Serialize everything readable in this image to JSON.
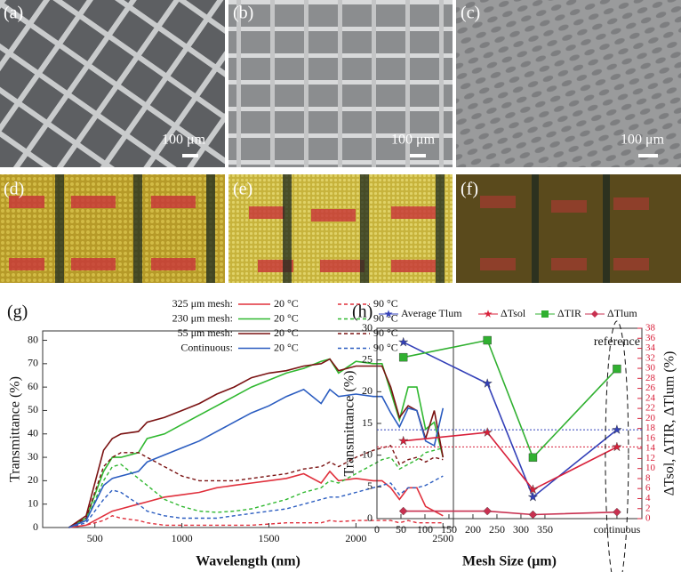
{
  "panels": [
    {
      "label": "(a)",
      "scale": "100 μm"
    },
    {
      "label": "(b)",
      "scale": "100 μm"
    },
    {
      "label": "(c)",
      "scale": "100 μm"
    },
    {
      "label": "(d)"
    },
    {
      "label": "(e)"
    },
    {
      "label": "(f)"
    }
  ],
  "chart_data": [
    {
      "type": "line",
      "panel": "(g)",
      "x_label": "Wavelength (nm)",
      "y_label": "Transmittance (%)",
      "xlim": [
        200,
        2560
      ],
      "xticks": [
        500,
        1000,
        1500,
        2000,
        2500
      ],
      "ylim": [
        0,
        84
      ],
      "yticks": [
        0,
        10,
        20,
        30,
        40,
        50,
        60,
        70,
        80
      ],
      "legend_groups": [
        "325 μm mesh:",
        "230 μm mesh:",
        "55 μm mesh:",
        "Continuous:"
      ],
      "x": [
        350,
        450,
        550,
        600,
        650,
        750,
        800,
        900,
        1000,
        1100,
        1200,
        1300,
        1400,
        1500,
        1600,
        1700,
        1800,
        1850,
        1900,
        2000,
        2100,
        2150,
        2200,
        2250,
        2300,
        2350,
        2400,
        2450,
        2500
      ],
      "series": [
        {
          "name": "20 °C",
          "color": "#e0303c",
          "dashed": false,
          "values": [
            0,
            1,
            5,
            7,
            8,
            10,
            11,
            13,
            14,
            15,
            17,
            18,
            19,
            20,
            21,
            23,
            19,
            24,
            20,
            21,
            20,
            20,
            17,
            12,
            17,
            17,
            9,
            7,
            5
          ]
        },
        {
          "name": "90 °C",
          "color": "#e0303c",
          "dashed": true,
          "values": [
            0,
            1,
            3,
            5,
            4,
            3,
            2,
            1,
            1,
            1,
            1,
            1,
            1,
            1.5,
            2,
            2,
            2,
            3,
            2.5,
            3,
            3,
            3,
            3,
            2,
            3,
            2,
            2,
            2,
            2
          ]
        },
        {
          "name": "20 °C",
          "color": "#30b830",
          "dashed": false,
          "values": [
            0,
            4,
            24,
            30,
            30,
            32,
            38,
            40,
            44,
            48,
            52,
            56,
            60,
            63,
            66,
            68,
            71,
            72,
            66,
            71,
            70,
            70,
            58,
            46,
            60,
            60,
            42,
            45,
            30
          ]
        },
        {
          "name": "90 °C",
          "color": "#30b830",
          "dashed": true,
          "values": [
            0,
            3,
            20,
            26,
            27,
            21,
            18,
            12,
            9,
            7,
            6.5,
            7,
            8,
            10,
            12,
            15,
            17,
            20,
            19,
            23,
            27,
            29,
            30,
            25,
            27,
            29,
            32,
            33,
            34
          ]
        },
        {
          "name": "20 °C",
          "color": "#7a1212",
          "dashed": false,
          "values": [
            0,
            5,
            33,
            38,
            40,
            41,
            45,
            47,
            50,
            53,
            57,
            60,
            64,
            66,
            67,
            69,
            70,
            72,
            67,
            69,
            69,
            69,
            60,
            47,
            52,
            50,
            38,
            50,
            30
          ]
        },
        {
          "name": "90 °C",
          "color": "#7a1212",
          "dashed": true,
          "values": [
            0,
            4,
            26,
            30,
            32,
            32,
            30,
            26,
            22,
            20,
            20,
            20,
            21,
            22,
            23,
            25,
            26,
            28,
            26,
            30,
            33,
            34,
            35,
            27,
            29,
            30,
            28,
            30,
            29
          ]
        },
        {
          "name": "20 °C",
          "color": "#2a5cc0",
          "dashed": false,
          "values": [
            0,
            3,
            18,
            21,
            22,
            24,
            28,
            31,
            34,
            37,
            41,
            45,
            49,
            52,
            56,
            59,
            53,
            59,
            56,
            57,
            56,
            56,
            49,
            43,
            51,
            50,
            37,
            35,
            51
          ]
        },
        {
          "name": "90 °C",
          "color": "#2a5cc0",
          "dashed": true,
          "values": [
            0,
            2,
            12,
            16,
            15,
            10,
            7,
            5,
            4,
            4,
            4,
            5,
            6,
            7,
            8,
            10,
            12,
            13,
            13,
            15,
            17,
            18,
            19,
            14,
            17,
            17,
            18,
            20,
            22
          ]
        }
      ]
    },
    {
      "type": "line",
      "panel": "(h)",
      "x_label": "Mesh Size (μm)",
      "y_label": "Transmittance (%)",
      "y2_label": "ΔTsol, ΔTIR, ΔTlum (%)",
      "annotation": "reference",
      "xlim": [
        0,
        552
      ],
      "xticks": [
        0,
        50,
        100,
        150,
        200,
        250,
        300,
        350,
        {
          "value": 500,
          "label": "continuous"
        }
      ],
      "ylim": [
        0,
        30
      ],
      "yticks": [
        0,
        5,
        10,
        15,
        20,
        25,
        30
      ],
      "y2lim": [
        0,
        38
      ],
      "y2ticks": [
        0,
        2,
        4,
        6,
        8,
        10,
        12,
        14,
        16,
        18,
        20,
        22,
        24,
        26,
        28,
        30,
        32,
        34,
        36,
        38
      ],
      "x": [
        55,
        230,
        325,
        500
      ],
      "hlines": [
        {
          "value": 14,
          "color": "#3344bb"
        },
        {
          "value": 11.3,
          "color": "#d8203a"
        }
      ],
      "series": [
        {
          "name": "Average Tlum",
          "color": "#3340b8",
          "marker": "star",
          "values": [
            27.8,
            21.3,
            3.4,
            14.0
          ]
        },
        {
          "name": "ΔTsol",
          "color": "#d8203a",
          "marker": "star",
          "axis": "y2",
          "values": [
            15.5,
            17.2,
            5.8,
            14.3
          ]
        },
        {
          "name": "ΔTIR",
          "color": "#30b030",
          "marker": "square",
          "axis": "y2",
          "values": [
            32.2,
            35.6,
            12.2,
            29.9
          ]
        },
        {
          "name": "ΔTlum",
          "color": "#c83050",
          "marker": "diamond",
          "axis": "y2",
          "values": [
            1.5,
            1.5,
            0.8,
            1.3
          ]
        }
      ]
    }
  ]
}
